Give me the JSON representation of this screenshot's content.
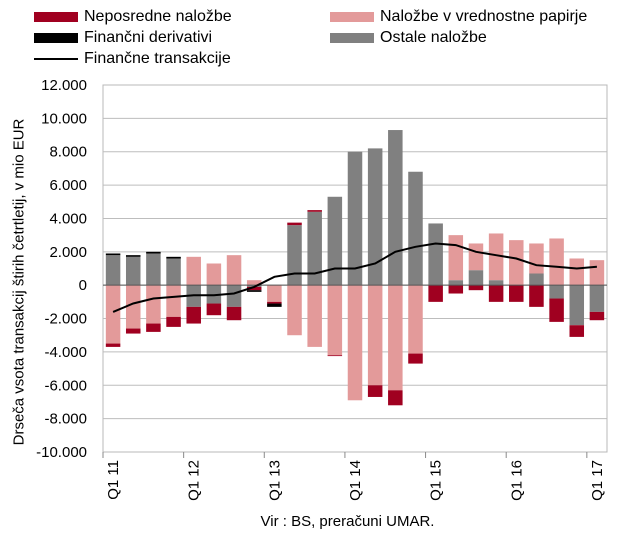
{
  "chart_data": {
    "type": "bar",
    "stacked": true,
    "title": "",
    "ylabel": "Drseča vsota transakcij štirih četrtletij, v mio EUR",
    "xlabel": "",
    "source": "Vir : BS, preračuni UMAR.",
    "ylim": [
      -10000,
      12000
    ],
    "yticks": [
      "-10.000",
      "-8.000",
      "-6.000",
      "-4.000",
      "-2.000",
      "0",
      "2.000",
      "4.000",
      "6.000",
      "8.000",
      "10.000",
      "12.000"
    ],
    "x_labels": [
      "Q1 11",
      "Q1 12",
      "Q1 13",
      "Q1 14",
      "Q1 15",
      "Q1 16",
      "Q1 17"
    ],
    "categories": [
      "2011Q1",
      "2011Q2",
      "2011Q3",
      "2011Q4",
      "2012Q1",
      "2012Q2",
      "2012Q3",
      "2012Q4",
      "2013Q1",
      "2013Q2",
      "2013Q3",
      "2013Q4",
      "2014Q1",
      "2014Q2",
      "2014Q3",
      "2014Q4",
      "2015Q1",
      "2015Q2",
      "2015Q3",
      "2015Q4",
      "2016Q1",
      "2016Q2",
      "2016Q3",
      "2016Q4",
      "2017Q1"
    ],
    "grid": "horizontal",
    "legend_position": "top",
    "series": [
      {
        "name": "Neposredne naložbe",
        "color": "#a00020",
        "values": [
          -200,
          -300,
          -500,
          -600,
          -1000,
          -700,
          -800,
          -200,
          -100,
          150,
          100,
          -50,
          0,
          -700,
          -900,
          -600,
          -1000,
          -500,
          -300,
          -1000,
          -1000,
          -1300,
          -1400,
          -700,
          -500
        ]
      },
      {
        "name": "Naložbe v vrednostne papirje",
        "color": "#e39a9a",
        "values": [
          -3500,
          -2600,
          -2300,
          -1900,
          1700,
          1300,
          1800,
          300,
          -1000,
          -3000,
          -3700,
          -4200,
          -6900,
          -6000,
          -6300,
          -4100,
          0,
          2700,
          1600,
          2800,
          2700,
          1800,
          2800,
          1600,
          1500
        ]
      },
      {
        "name": "Finančni derivativi",
        "color": "#000000",
        "values": [
          100,
          100,
          100,
          100,
          0,
          0,
          0,
          -100,
          -200,
          0,
          0,
          0,
          0,
          0,
          0,
          0,
          0,
          0,
          0,
          0,
          0,
          0,
          0,
          0,
          0
        ]
      },
      {
        "name": "Ostale naložbe",
        "color": "#808080",
        "values": [
          1800,
          1700,
          1900,
          1600,
          -1300,
          -1100,
          -1300,
          -100,
          0,
          3600,
          4400,
          5300,
          8000,
          8200,
          9300,
          6800,
          3700,
          300,
          900,
          300,
          0,
          700,
          -800,
          -2400,
          -1600
        ]
      }
    ],
    "line_series": {
      "name": "Finančne transakcije",
      "color": "#000000",
      "values": [
        -1600,
        -1100,
        -800,
        -700,
        -600,
        -600,
        -500,
        -100,
        500,
        700,
        700,
        1000,
        1000,
        1300,
        2000,
        2300,
        2500,
        2400,
        2000,
        1800,
        1600,
        1200,
        1100,
        1000,
        1100
      ]
    }
  }
}
